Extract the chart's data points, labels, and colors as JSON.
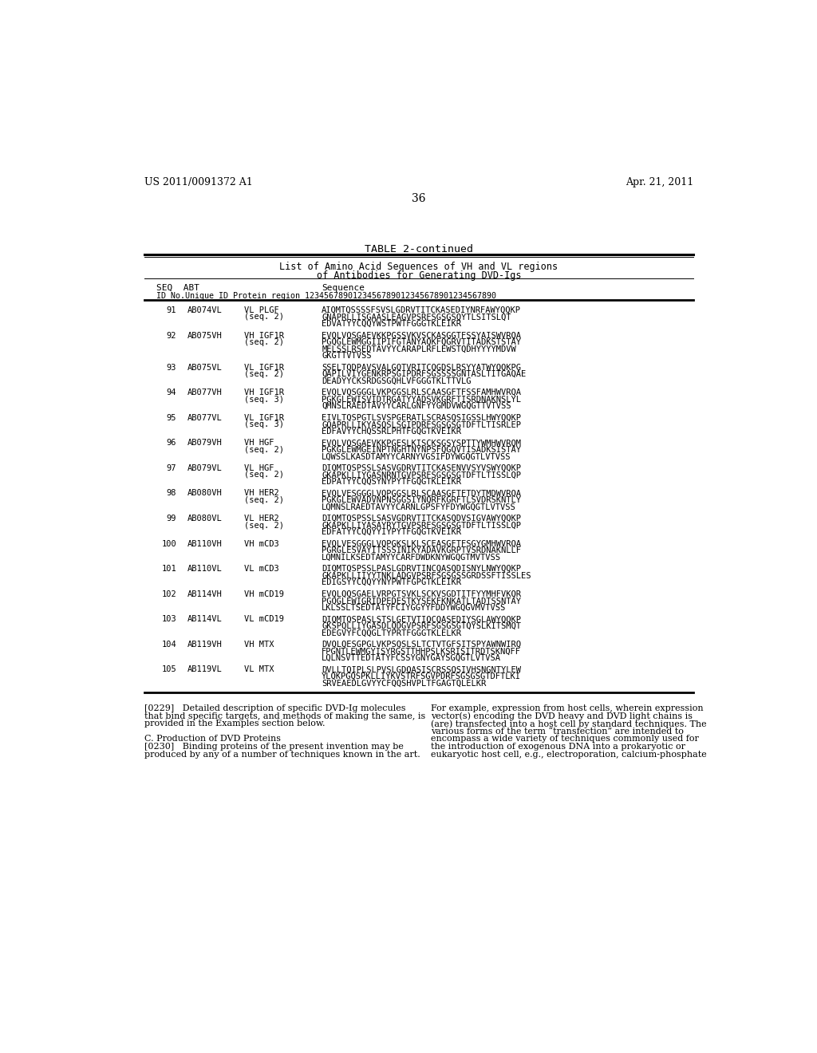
{
  "background_color": "#ffffff",
  "header_left": "US 2011/0091372 A1",
  "header_right": "Apr. 21, 2011",
  "page_number": "36",
  "table_title": "TABLE 2-continued",
  "table_subtitle1": "List of Amino Acid Sequences of VH and VL regions",
  "table_subtitle2": "of Antibodies for Generating DVD-Igs",
  "entries": [
    {
      "seq": "91",
      "abt": "AB074VL",
      "region": "VL PLGF",
      "seq2": "(seq. 2)",
      "lines": [
        "AIQMTQSSSSFSVSLGDRVTITCKASEDIYNRFAWYQQKP",
        "GNAPRLLISGAASLEAGVPSRFSGSGSQYTLSITSLQT",
        "EDVATYYCQQYWSTPWTFGGGTKLEIKR"
      ]
    },
    {
      "seq": "92",
      "abt": "AB075VH",
      "region": "VH IGF1R",
      "seq2": "(seq. 2)",
      "lines": [
        "EVQLVQSGAEVKKPGSSVKVSCKASGGTFSSYAISWVRQA",
        "PGQGLEWMGGIIPIFGTANYAQKFQGRVTITADKSTSTAY",
        "MELSSLRSEDTAVYYCARAPLRFLEWSTQDHYYYYMDVW",
        "GKGTTVTVSS"
      ]
    },
    {
      "seq": "93",
      "abt": "AB075VL",
      "region": "VL IGF1R",
      "seq2": "(seq. 2)",
      "lines": [
        "SSELTQDPAVSVALGQTVRITCQGDSLRSYYATWYQQKPG",
        "QAPILVIYGENKRPSGIPDRFSGSSSSGNTASLTITGAQAE",
        "DEADYYCKSRDGSGQHLVFGGGTKLTTVLG"
      ]
    },
    {
      "seq": "94",
      "abt": "AB077VH",
      "region": "VH IGF1R",
      "seq2": "(seq. 3)",
      "lines": [
        "EVQLVQSGGGLVKPGGSLRLSCAASGFTFSSFAMHWVRQA",
        "PGKGLEWISVIDTRGATYYADSVKGRFTISRDNAKNSLYL",
        "QMNSLRAEDTAVYYCARLGNFYYGMDVWGQGTTVTVSS"
      ]
    },
    {
      "seq": "95",
      "abt": "AB077VL",
      "region": "VL IGF1R",
      "seq2": "(seq. 3)",
      "lines": [
        "EIVLTQSPGTLSVSPGERATLSCRASQSIGSSLHWYQQKP",
        "GQAPRLLIKYASQSLSGIPDRFSGSGSGTDFTLTISRLEP",
        "EDFAVYYCHQSSRLPHTFGQGTKVEIKR"
      ]
    },
    {
      "seq": "96",
      "abt": "AB079VH",
      "region": "VH HGF",
      "seq2": "(seq. 2)",
      "lines": [
        "EVQLVQSGAEVKKPGESLKISCKSGSYSPTTYWMHWVRQM",
        "PGKGLEWMGEINPTNGHTNYNPSFQGQVTISADKSISTAY",
        "LQWSSLKASDTAMYYCARNYVGSIFDYWGQGTLVTVSS"
      ]
    },
    {
      "seq": "97",
      "abt": "AB079VL",
      "region": "VL HGF",
      "seq2": "(seq. 2)",
      "lines": [
        "DIQMTQSPSSLSASVGDRVTITCKASENVVSYVSWYQQKP",
        "GKAPKLLIYGASNRNTGVPSRFSGSGSGTDFTLTISSLQP",
        "EDPATYYCQQSYNYPYTFGQGTKLEIKR"
      ]
    },
    {
      "seq": "98",
      "abt": "AB080VH",
      "region": "VH HER2",
      "seq2": "(seq. 2)",
      "lines": [
        "EVQLVESGGGLVQPGGSLRLSCAASGFTFTDYTMDWVRQA",
        "PGKGLEWVADVNPNSGGSIYNQRFKGRFTLSVDRSKNTLY",
        "LQMNSLRAEDTAVYYCARNLGPSFYFDYWGQGTLVTVSS"
      ]
    },
    {
      "seq": "99",
      "abt": "AB080VL",
      "region": "VL HER2",
      "seq2": "(seq. 2)",
      "lines": [
        "DIQMTQSPSSLSASVGDRVTITCKASQDVSIGVAWYQQKP",
        "GKAPKLLIYASAYRYTGVPSRFSGSGSGTDFTLTISSLQP",
        "EDFATYYCQQYYIYPYTFGQGTKVEIKR"
      ]
    },
    {
      "seq": "100",
      "abt": "AB110VH",
      "region": "VH mCD3",
      "seq2": "",
      "lines": [
        "EVQLVESGGGLVQPGKSLKLSCEASGFTFSGYGMHWVRQA",
        "PGRGLESVAYITSSSINIKYADAVKGRPTVSRDNAKNLLF",
        "LQMNILKSEDTAMYYCARFDWDKNYWGQGTMVTVSS"
      ]
    },
    {
      "seq": "101",
      "abt": "AB110VL",
      "region": "VL mCD3",
      "seq2": "",
      "lines": [
        "DIQMTQSPSSLPASLGDRVTINCQASQDISNYLNWYQQKP",
        "GKAPKLLIIYYTNKLADGVPSRFSGSGSSGRDSSFTISSLES",
        "EDIGSYYCQQYYNYPWTFGPGTKLEIKR"
      ]
    },
    {
      "seq": "102",
      "abt": "AB114VH",
      "region": "VH mCD19",
      "seq2": "",
      "lines": [
        "EVQLQQSGAELVRPGTSVKLSCKVSGDTITFYYMHFVKQR",
        "PGQGLEWIGRIDPEDESTKYSEKFKNKATLTADTSSNTAY",
        "LKLSSLTSEDTATYFCIYGGYYFDDYWGQGVMVTVSS"
      ]
    },
    {
      "seq": "103",
      "abt": "AB114VL",
      "region": "VL mCD19",
      "seq2": "",
      "lines": [
        "DIQMTQSPASLSTSLGETVTIQCQASEDIYSGLAWYQQKP",
        "GKSPQLLIYGASDLQDGVPSRFSGSGSGTQYSLKITSMQT",
        "EDEGVYFCQQGLTYPRTFGGGTKLELKR"
      ]
    },
    {
      "seq": "104",
      "abt": "AB119VH",
      "region": "VH MTX",
      "seq2": "",
      "lines": [
        "DVQLQESGPGLVKPSQSLSLTCTVTGFSITSPYAWNWIRQ",
        "FPGNTLEWMGYISYRGSTTHHPSLKSRISITRDTSKNQFF",
        "LQLNSVTTEDTATYFCSSYGNYGAYSGQGTLVTVSA"
      ]
    },
    {
      "seq": "105",
      "abt": "AB119VL",
      "region": "VL MTX",
      "seq2": "",
      "lines": [
        "DVLLTQIPLSLPVSLGDQASISCRSSQSIVHSNGNTYLEW",
        "YLQKPGQSPKLLIYKVSTRFSGVPDRFSGSGSGTDFTLKI",
        "SRVEAEDLGVYYCFQQSHVPLTFGAGTQLELKR"
      ]
    }
  ],
  "fn_left": [
    {
      "text": "[0229]   Detailed description of specific DVD-Ig molecules",
      "bold": false,
      "indent": false
    },
    {
      "text": "that bind specific targets, and methods of making the same, is",
      "bold": false,
      "indent": false
    },
    {
      "text": "provided in the Examples section below.",
      "bold": false,
      "indent": false
    },
    {
      "text": "",
      "bold": false,
      "indent": false
    },
    {
      "text": "C. Production of DVD Proteins",
      "bold": false,
      "indent": false
    },
    {
      "text": "[0230]   Binding proteins of the present invention may be",
      "bold": false,
      "indent": false
    },
    {
      "text": "produced by any of a number of techniques known in the art.",
      "bold": false,
      "indent": false
    }
  ],
  "fn_right": [
    "For example, expression from host cells, wherein expression",
    "vector(s) encoding the DVD heavy and DVD light chains is",
    "(are) transfected into a host cell by standard techniques. The",
    "various forms of the term “transfection” are intended to",
    "encompass a wide variety of techniques commonly used for",
    "the introduction of exogenous DNA into a prokaryotic or",
    "eukaryotic host cell, e.g., electroporation, calcium-phosphate"
  ]
}
